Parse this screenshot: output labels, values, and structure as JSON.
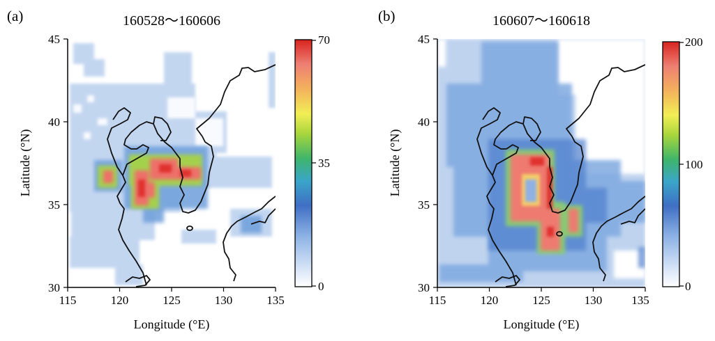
{
  "panels": [
    {
      "letter": "(a)",
      "title": "160528～160606",
      "xlabel": "Longitude (°E)",
      "ylabel": "Latitude (°N)",
      "xticks": [
        "115",
        "120",
        "125",
        "130",
        "135"
      ],
      "yticks": [
        "30",
        "35",
        "40",
        "45"
      ],
      "xlim": [
        115,
        135
      ],
      "ylim": [
        30,
        45
      ],
      "colorbar": {
        "min": 0,
        "max": 70,
        "ticks": [
          "0",
          "35",
          "70"
        ]
      }
    },
    {
      "letter": "(b)",
      "title": "160607～160618",
      "xlabel": "Longitude (°E)",
      "ylabel": "Latitude (°N)",
      "xticks": [
        "115",
        "120",
        "125",
        "130",
        "135"
      ],
      "yticks": [
        "30",
        "35",
        "40",
        "45"
      ],
      "xlim": [
        115,
        135
      ],
      "ylim": [
        30,
        45
      ],
      "colorbar": {
        "min": 0,
        "max": 200,
        "ticks": [
          "0",
          "100",
          "200"
        ]
      }
    }
  ],
  "colors": {
    "colormap": [
      "#ffffff",
      "#b7cff0",
      "#6e9fdb",
      "#3f6fc4",
      "#3aa6c8",
      "#3fb56a",
      "#a9d63c",
      "#f2ee55",
      "#f3b25c",
      "#ee7f73",
      "#e83230",
      "#d8241f"
    ],
    "coastline": "#111111",
    "axis": "#000000"
  }
}
